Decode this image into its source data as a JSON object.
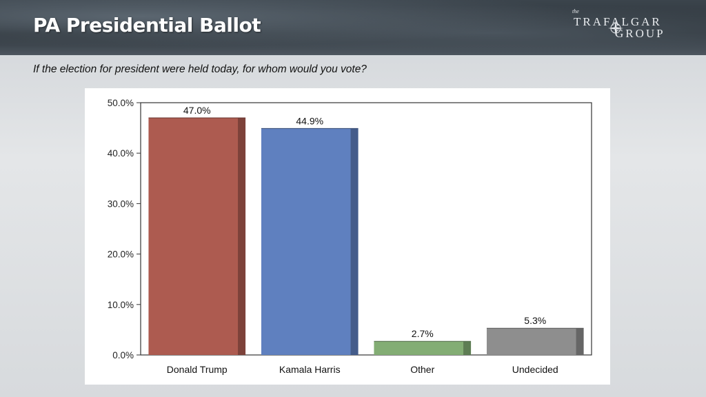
{
  "slide": {
    "title": "PA Presidential Ballot",
    "question": "If the election for president were held today, for whom would you vote?",
    "logo": {
      "the": "the",
      "line1": "TRAFALGAR",
      "line2": "GROUP",
      "icon": "compass-rose-icon"
    }
  },
  "colors": {
    "trump": "#ad5b50",
    "harris": "#5f80bf",
    "other": "#83ad74",
    "undecided": "#8e8e8e"
  },
  "chart_data": {
    "type": "bar",
    "title": "",
    "xlabel": "",
    "ylabel": "",
    "categories": [
      "Donald Trump",
      "Kamala Harris",
      "Other",
      "Undecided"
    ],
    "values": [
      47.0,
      44.9,
      2.7,
      5.3
    ],
    "data_labels": [
      "47.0%",
      "44.9%",
      "2.7%",
      "5.3%"
    ],
    "bar_colors": [
      "#ad5b50",
      "#5f80bf",
      "#83ad74",
      "#8e8e8e"
    ],
    "ylim": [
      0,
      50
    ],
    "yticks": [
      0,
      10,
      20,
      30,
      40,
      50
    ],
    "ytick_labels": [
      "0.0%",
      "10.0%",
      "20.0%",
      "30.0%",
      "40.0%",
      "50.0%"
    ],
    "grid": false,
    "legend": "none"
  }
}
